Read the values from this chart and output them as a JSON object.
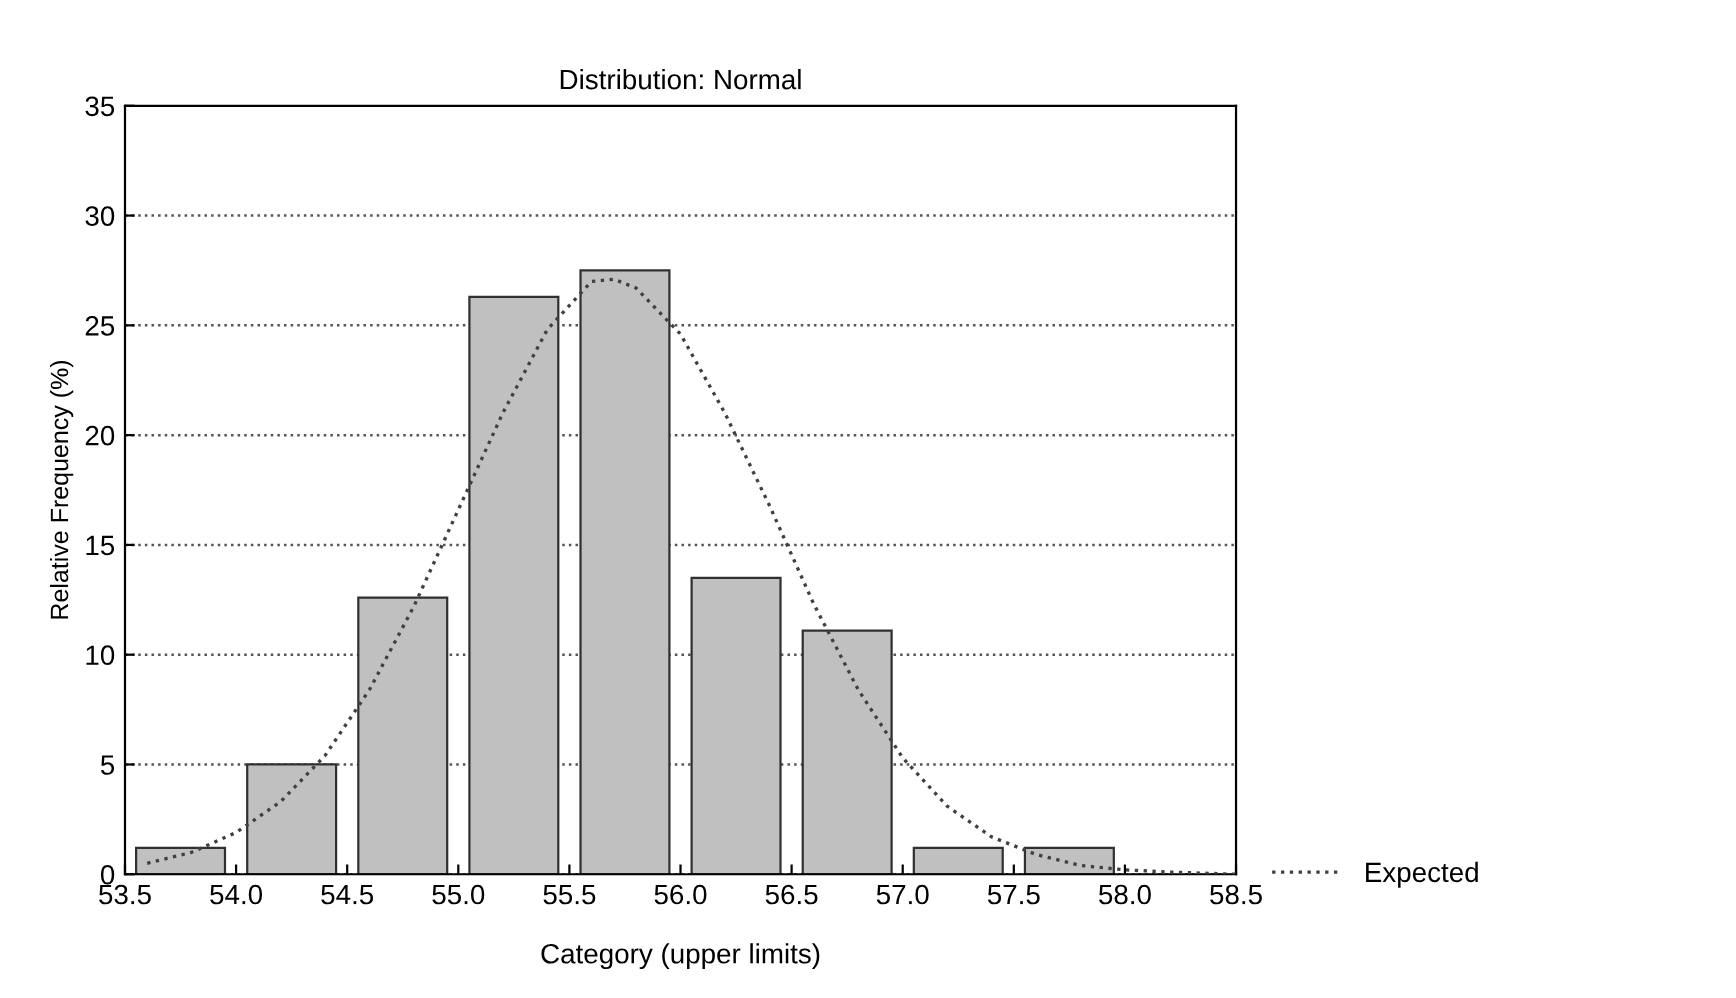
{
  "chart_data": {
    "type": "histogram",
    "title": "Distribution: Normal",
    "xlabel": "Category (upper limits)",
    "ylabel": "Relative Frequency (%)",
    "bins": [
      53.5,
      54.0,
      54.5,
      55.0,
      55.5,
      56.0,
      56.5,
      57.0,
      57.5,
      58.0,
      58.5
    ],
    "values": [
      1.2,
      5.0,
      12.6,
      26.3,
      27.5,
      13.5,
      11.1,
      1.2,
      1.2,
      null
    ],
    "color": "#c0c0c0",
    "series": [
      {
        "type": "line",
        "name": "Expected",
        "color": "#404040",
        "line_style": "dotted",
        "x": [
          53.6,
          53.8,
          54.0,
          54.2,
          54.4,
          54.6,
          54.8,
          55.0,
          55.2,
          55.4,
          55.6,
          55.7,
          55.8,
          56.0,
          56.2,
          56.4,
          56.6,
          56.8,
          57.0,
          57.2,
          57.4,
          57.6,
          57.8,
          58.0,
          58.2,
          58.5
        ],
        "values": [
          0.5,
          1.0,
          1.9,
          3.3,
          5.4,
          8.4,
          12.2,
          16.6,
          21.0,
          24.8,
          27.0,
          27.1,
          26.7,
          24.6,
          21.0,
          16.8,
          12.3,
          8.4,
          5.3,
          3.1,
          1.7,
          0.9,
          0.4,
          0.2,
          0.1,
          0.0
        ]
      }
    ],
    "xlim": [
      53.5,
      58.5
    ],
    "ylim": [
      0,
      35
    ],
    "xticks": [
      {
        "value": 53.5,
        "label": "53.5"
      },
      {
        "value": 54.0,
        "label": "54.0"
      },
      {
        "value": 54.5,
        "label": "54.5"
      },
      {
        "value": 55.0,
        "label": "55.0"
      },
      {
        "value": 55.5,
        "label": "55.5"
      },
      {
        "value": 56.0,
        "label": "56.0"
      },
      {
        "value": 56.5,
        "label": "56.5"
      },
      {
        "value": 57.0,
        "label": "57.0"
      },
      {
        "value": 57.5,
        "label": "57.5"
      },
      {
        "value": 58.0,
        "label": "58.0"
      },
      {
        "value": 58.5,
        "label": "58.5"
      }
    ],
    "yticks": [
      0,
      5,
      10,
      15,
      20,
      25,
      30,
      35
    ],
    "grid": "y",
    "legend": "right"
  }
}
